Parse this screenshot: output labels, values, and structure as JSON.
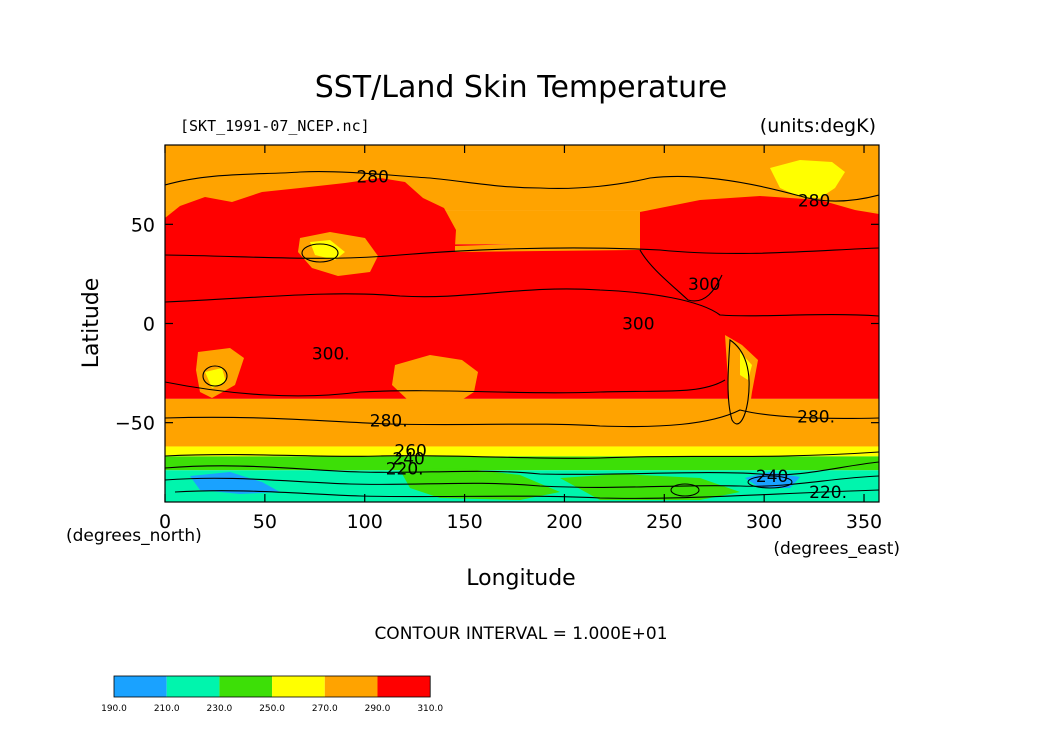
{
  "chart_data": {
    "type": "heatmap",
    "title": "SST/Land Skin Temperature",
    "source_label": "[SKT_1991-07_NCEP.nc]",
    "units_label": "(units:degK)",
    "xlabel": "Longitude",
    "ylabel": "Latitude",
    "x_units_label": "(degrees_east)",
    "y_units_label": "(degrees_north)",
    "xlim": [
      0,
      357.5
    ],
    "ylim": [
      -90,
      90
    ],
    "x_ticks": [
      0,
      50,
      100,
      150,
      200,
      250,
      300,
      350
    ],
    "y_ticks": [
      -50,
      0,
      50
    ],
    "contour_interval_label": "CONTOUR INTERVAL = 1.000E+01",
    "contour_labels": [
      {
        "text": "280",
        "lon": 104,
        "lat": 74
      },
      {
        "text": "280",
        "lon": 325,
        "lat": 62
      },
      {
        "text": "300",
        "lon": 270,
        "lat": 20
      },
      {
        "text": "300",
        "lon": 237,
        "lat": 0
      },
      {
        "text": "300.",
        "lon": 83,
        "lat": -15
      },
      {
        "text": "280.",
        "lon": 112,
        "lat": -49
      },
      {
        "text": "280.",
        "lon": 326,
        "lat": -47
      },
      {
        "text": "260",
        "lon": 123,
        "lat": -64
      },
      {
        "text": "240",
        "lon": 122,
        "lat": -68
      },
      {
        "text": "220.",
        "lon": 120,
        "lat": -73
      },
      {
        "text": "240",
        "lon": 304,
        "lat": -77
      },
      {
        "text": "220.",
        "lon": 332,
        "lat": -85
      }
    ],
    "colorbar": {
      "boundaries": [
        "190.0",
        "210.0",
        "230.0",
        "250.0",
        "270.0",
        "290.0",
        "310.0"
      ],
      "colors": [
        "#1aa2ff",
        "#00f5ad",
        "#3ddf07",
        "#ffff00",
        "#ffa300",
        "#ff0000"
      ]
    },
    "bands": [
      {
        "lat_top": 90,
        "lat_bottom": 57,
        "value_range": [
          280,
          290
        ],
        "color": "#ffa300"
      },
      {
        "lat_top": 40,
        "lat_bottom": -38,
        "value_range": [
          290,
          310
        ],
        "color": "#ff0000"
      },
      {
        "lat_top": -38,
        "lat_bottom": -62,
        "value_range": [
          270,
          290
        ],
        "color": "#ffa300"
      },
      {
        "lat_top": -62,
        "lat_bottom": -67,
        "value_range": [
          250,
          270
        ],
        "color": "#ffff00"
      },
      {
        "lat_top": -67,
        "lat_bottom": -74,
        "value_range": [
          230,
          250
        ],
        "color": "#3ddf07"
      },
      {
        "lat_top": -74,
        "lat_bottom": -90,
        "value_range": [
          210,
          230
        ],
        "color": "#00f5ad"
      }
    ]
  }
}
